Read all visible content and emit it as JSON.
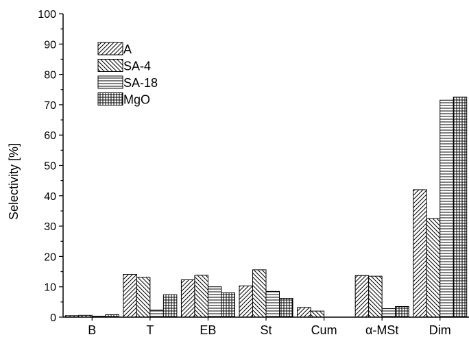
{
  "chart_data": {
    "type": "bar",
    "title": "",
    "xlabel": "",
    "ylabel": "Selectivity [%]",
    "ylim": [
      0,
      100
    ],
    "yticks": [
      0,
      10,
      20,
      30,
      40,
      50,
      60,
      70,
      80,
      90,
      100
    ],
    "grid": false,
    "legend_position": "top-left",
    "categories": [
      "B",
      "T",
      "EB",
      "St",
      "Cum",
      "α-MSt",
      "Dim"
    ],
    "series": [
      {
        "name": "A",
        "pattern": "diagonal-forward",
        "values": [
          0.5,
          14.1,
          12.3,
          10.3,
          3.2,
          13.7,
          42.0
        ]
      },
      {
        "name": "SA-4",
        "pattern": "diagonal-backward",
        "values": [
          0.6,
          13.1,
          13.8,
          15.6,
          2.0,
          13.5,
          32.5
        ]
      },
      {
        "name": "SA-18",
        "pattern": "horizontal",
        "values": [
          0.3,
          2.3,
          10.0,
          8.5,
          0,
          2.8,
          71.5
        ]
      },
      {
        "name": "MgO",
        "pattern": "grid",
        "values": [
          0.8,
          7.4,
          8.0,
          6.2,
          0,
          3.5,
          72.5
        ]
      }
    ]
  }
}
